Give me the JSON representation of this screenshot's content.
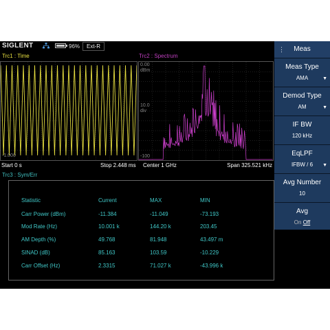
{
  "status": {
    "brand": "SIGLENT",
    "battery_pct": "96%",
    "battery_level": 0.96,
    "ref_source": "Ext-R"
  },
  "traces": {
    "trc1": "Trc1 :  Time",
    "trc2": "Trc2 :  Spectrum",
    "trc3": "Trc3 :  Sym/Err"
  },
  "scale": {
    "top": "0.00",
    "unit": "dBm",
    "div_value": "10.0",
    "div_unit": "div",
    "bottom": "-100",
    "time_bottom": "-1.000"
  },
  "axis": {
    "start": "Start 0 s",
    "stop": "Stop 2.448 ms",
    "center": "Center 1 GHz",
    "span": "Span 325.521 kHz"
  },
  "stats": {
    "headers": [
      "Statistic",
      "Current",
      "MAX",
      "MIN"
    ],
    "rows": [
      [
        "Carr Power (dBm)",
        "-11.384",
        "-11.049",
        "-73.193"
      ],
      [
        "Mod Rate (Hz)",
        "10.001 k",
        "144.20 k",
        "203.45"
      ],
      [
        "AM Depth (%)",
        "49.768",
        "81.948",
        "43.497 m"
      ],
      [
        "SINAD (dB)",
        "85.163",
        "103.59",
        "-10.229"
      ],
      [
        "Carr Offset (Hz)",
        "2.3315",
        "71.027 k",
        "-43.996 k"
      ]
    ]
  },
  "menu": {
    "title": "Meas",
    "items": [
      {
        "label": "Meas Type",
        "value": "AMA"
      },
      {
        "label": "Demod Type",
        "value": "AM"
      },
      {
        "label": "IF BW",
        "value": "120 kHz"
      },
      {
        "label": "EqLPF",
        "value": "IFBW / 6"
      },
      {
        "label": "Avg Number",
        "value": "10"
      },
      {
        "label": "Avg",
        "on": "On",
        "off": "Off"
      }
    ]
  },
  "colors": {
    "time_trace": "#e8e040",
    "spectrum_trace": "#d040d0",
    "stat_text": "#40c8c8",
    "menu_bg": "#1e3a5e"
  }
}
